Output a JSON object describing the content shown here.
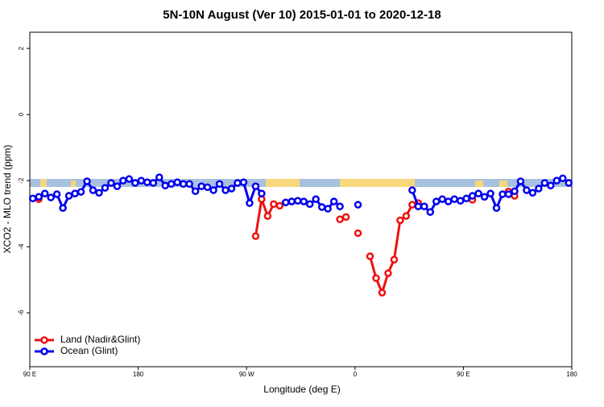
{
  "chart_data": {
    "type": "line",
    "title": "5N-10N August (Ver 10)   2015-01-01 to 2020-12-18",
    "x_label": "Longitude (deg E)",
    "y_label": "XCO2 - MLO trend (ppm)",
    "x": [
      92.5,
      97.5,
      102.5,
      107.5,
      112.5,
      117.5,
      122.5,
      127.5,
      132.5,
      137.5,
      142.5,
      147.5,
      152.5,
      157.5,
      162.5,
      167.5,
      172.5,
      177.5,
      182.5,
      187.5,
      192.5,
      197.5,
      202.5,
      207.5,
      212.5,
      217.5,
      222.5,
      227.5,
      232.5,
      237.5,
      242.5,
      247.5,
      252.5,
      257.5,
      262.5,
      267.5,
      272.5,
      277.5,
      282.5,
      287.5,
      292.5,
      297.5,
      302.5,
      307.5,
      312.5,
      317.5,
      322.5,
      327.5,
      332.5,
      337.5,
      342.5,
      347.5,
      352.5,
      357.5,
      362.5,
      367.5,
      372.5,
      377.5,
      382.5,
      387.5,
      392.5,
      397.5,
      402.5,
      407.5,
      412.5,
      417.5,
      422.5,
      427.5,
      432.5,
      437.5,
      442.5,
      447.5,
      452.5,
      457.5,
      462.5,
      467.5,
      472.5,
      477.5,
      482.5,
      487.5,
      492.5,
      497.5,
      502.5,
      507.5,
      512.5,
      517.5,
      522.5,
      527.5,
      532.5,
      537.5
    ],
    "series": [
      {
        "name": "Land (Nadir&Glint)",
        "color": "#ee1111",
        "values": [
          null,
          -2.56,
          null,
          null,
          null,
          null,
          -2.46,
          -2.39,
          null,
          null,
          null,
          null,
          null,
          null,
          null,
          null,
          null,
          null,
          null,
          null,
          null,
          null,
          null,
          null,
          null,
          null,
          null,
          null,
          null,
          null,
          null,
          null,
          null,
          null,
          null,
          null,
          null,
          -3.68,
          -2.56,
          -3.07,
          -2.71,
          -2.76,
          -2.66,
          -2.63,
          null,
          null,
          null,
          null,
          null,
          null,
          null,
          -3.17,
          -3.1,
          null,
          -3.59,
          null,
          -4.29,
          -4.95,
          -5.39,
          -4.8,
          -4.39,
          -3.2,
          -3.07,
          -2.73,
          -2.68,
          null,
          null,
          null,
          null,
          null,
          null,
          null,
          null,
          -2.58,
          null,
          null,
          null,
          null,
          null,
          -2.33,
          -2.46,
          null,
          null,
          null,
          null,
          null,
          null,
          null,
          null,
          null
        ]
      },
      {
        "name": "Ocean (Glint)",
        "color": "#0000ee",
        "values": [
          -2.54,
          -2.49,
          -2.39,
          -2.51,
          -2.41,
          -2.83,
          -2.46,
          -2.39,
          -2.34,
          -2.02,
          -2.29,
          -2.37,
          -2.22,
          -2.07,
          -2.17,
          -2.0,
          -1.95,
          -2.07,
          -2.0,
          -2.05,
          -2.07,
          -1.9,
          -2.15,
          -2.1,
          -2.05,
          -2.1,
          -2.1,
          -2.32,
          -2.17,
          -2.2,
          -2.29,
          -2.1,
          -2.29,
          -2.24,
          -2.07,
          -2.05,
          -2.68,
          -2.17,
          -2.39,
          null,
          null,
          null,
          -2.66,
          -2.63,
          -2.61,
          -2.63,
          -2.71,
          -2.56,
          -2.8,
          -2.85,
          -2.63,
          -2.78,
          null,
          null,
          -2.73,
          null,
          null,
          null,
          null,
          null,
          null,
          null,
          null,
          -2.29,
          -2.78,
          -2.78,
          -2.95,
          -2.63,
          -2.56,
          -2.63,
          -2.56,
          -2.61,
          -2.54,
          -2.46,
          -2.39,
          -2.49,
          -2.39,
          -2.83,
          -2.41,
          -2.41,
          -2.32,
          -2.02,
          -2.29,
          -2.37,
          -2.24,
          -2.07,
          -2.15,
          -2.0,
          -1.93,
          -2.07
        ]
      }
    ],
    "xlim": [
      90,
      540
    ],
    "xticks": [
      {
        "value": 90,
        "label": "90 E"
      },
      180,
      {
        "value": 270,
        "label": "90 W"
      },
      {
        "value": 360,
        "label": "0"
      },
      {
        "value": 450,
        "label": "90 E"
      },
      {
        "value": 540,
        "label": "180"
      }
    ],
    "ylim": [
      -7.63,
      2.49
    ],
    "yticks": [
      -6,
      -4,
      -2,
      0,
      2
    ],
    "legend": "bottomleft"
  }
}
